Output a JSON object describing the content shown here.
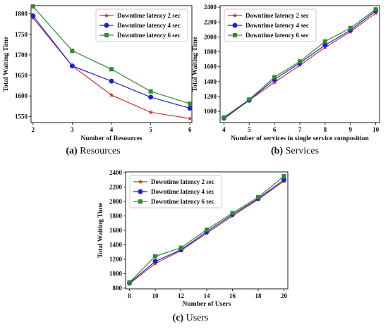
{
  "chart_data": [
    {
      "type": "line",
      "caption_tag": "(a)",
      "caption_text": "Resources",
      "xlabel": "Number of Resources",
      "ylabel": "Total Waiting Time",
      "x": [
        2,
        3,
        4,
        5,
        6
      ],
      "xticks": [
        2,
        3,
        4,
        5,
        6
      ],
      "xlim": [
        1.95,
        6.05
      ],
      "ylim": [
        1535,
        1820
      ],
      "yticks": [
        1550,
        1600,
        1650,
        1700,
        1750,
        1800
      ],
      "legend_position": "top-right",
      "series": [
        {
          "name": "Downtime latency 2 sec",
          "values": [
            1790,
            1673,
            1602,
            1560,
            1545
          ]
        },
        {
          "name": "Downtime latency 4 sec",
          "values": [
            1795,
            1673,
            1636,
            1597,
            1570
          ]
        },
        {
          "name": "Downtime latency 6 sec",
          "values": [
            1818,
            1710,
            1665,
            1611,
            1581
          ]
        }
      ]
    },
    {
      "type": "line",
      "caption_tag": "(b)",
      "caption_text": "Services",
      "xlabel": "Number of services in single service composition",
      "ylabel": "Total Waiting Time",
      "x": [
        4,
        5,
        6,
        7,
        8,
        9,
        10
      ],
      "xticks": [
        4,
        5,
        6,
        7,
        8,
        9,
        10
      ],
      "xlim": [
        3.85,
        10.15
      ],
      "ylim": [
        850,
        2420
      ],
      "yticks": [
        1000,
        1200,
        1400,
        1600,
        1800,
        2000,
        2200,
        2400
      ],
      "legend_position": "top-left",
      "series": [
        {
          "name": "Downtime latency 2 sec",
          "values": [
            900,
            1150,
            1390,
            1620,
            1860,
            2070,
            2320
          ]
        },
        {
          "name": "Downtime latency 4 sec",
          "values": [
            910,
            1150,
            1430,
            1650,
            1890,
            2090,
            2350
          ]
        },
        {
          "name": "Downtime latency 6 sec",
          "values": [
            920,
            1160,
            1460,
            1670,
            1940,
            2120,
            2370
          ]
        }
      ]
    },
    {
      "type": "line",
      "caption_tag": "(c)",
      "caption_text": "Users",
      "xlabel": "Number of Users",
      "ylabel": "Total Waiting Time",
      "x": [
        8,
        10,
        12,
        14,
        16,
        18,
        20
      ],
      "xticks": [
        8,
        10,
        12,
        14,
        16,
        18,
        20
      ],
      "xlim": [
        7.7,
        20.3
      ],
      "ylim": [
        790,
        2410
      ],
      "yticks": [
        800,
        1000,
        1200,
        1400,
        1600,
        1800,
        2000,
        2200,
        2400
      ],
      "legend_position": "top-left",
      "series": [
        {
          "name": "Downtime latency 2 sec",
          "values": [
            860,
            1140,
            1320,
            1560,
            1800,
            2030,
            2280
          ]
        },
        {
          "name": "Downtime latency 4 sec",
          "values": [
            870,
            1170,
            1330,
            1580,
            1820,
            2040,
            2300
          ]
        },
        {
          "name": "Downtime latency 6 sec",
          "values": [
            880,
            1240,
            1360,
            1610,
            1840,
            2060,
            2350
          ]
        }
      ]
    }
  ],
  "series_styles": [
    {
      "color": "#c0392b",
      "marker": "star"
    },
    {
      "color": "#1f1fd6",
      "marker": "circle"
    },
    {
      "color": "#2e8b2e",
      "marker": "square"
    }
  ]
}
